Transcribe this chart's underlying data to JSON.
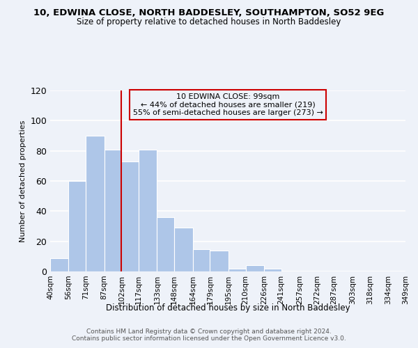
{
  "title": "10, EDWINA CLOSE, NORTH BADDESLEY, SOUTHAMPTON, SO52 9EG",
  "subtitle": "Size of property relative to detached houses in North Baddesley",
  "xlabel": "Distribution of detached houses by size in North Baddesley",
  "ylabel": "Number of detached properties",
  "bar_edges": [
    40,
    56,
    71,
    87,
    102,
    117,
    133,
    148,
    164,
    179,
    195,
    210,
    226,
    241,
    257,
    272,
    287,
    303,
    318,
    334,
    349
  ],
  "bar_heights": [
    9,
    60,
    90,
    81,
    73,
    81,
    36,
    29,
    15,
    14,
    2,
    4,
    2,
    0,
    0,
    0,
    0,
    0,
    0,
    0
  ],
  "bar_color": "#aec6e8",
  "bar_edgecolor": "white",
  "property_line_x": 102,
  "property_line_color": "#cc0000",
  "annotation_box_edgecolor": "#cc0000",
  "annotation_text_line1": "10 EDWINA CLOSE: 99sqm",
  "annotation_text_line2": "← 44% of detached houses are smaller (219)",
  "annotation_text_line3": "55% of semi-detached houses are larger (273) →",
  "ylim": [
    0,
    120
  ],
  "yticks": [
    0,
    20,
    40,
    60,
    80,
    100,
    120
  ],
  "tick_labels": [
    "40sqm",
    "56sqm",
    "71sqm",
    "87sqm",
    "102sqm",
    "117sqm",
    "133sqm",
    "148sqm",
    "164sqm",
    "179sqm",
    "195sqm",
    "210sqm",
    "226sqm",
    "241sqm",
    "257sqm",
    "272sqm",
    "287sqm",
    "303sqm",
    "318sqm",
    "334sqm",
    "349sqm"
  ],
  "footer_line1": "Contains HM Land Registry data © Crown copyright and database right 2024.",
  "footer_line2": "Contains public sector information licensed under the Open Government Licence v3.0.",
  "background_color": "#eef2f9",
  "grid_color": "#ffffff",
  "title_fontsize": 9.5,
  "subtitle_fontsize": 8.5,
  "xlabel_fontsize": 8.5,
  "ylabel_fontsize": 8.0,
  "tick_fontsize": 7.5,
  "footer_fontsize": 6.5
}
